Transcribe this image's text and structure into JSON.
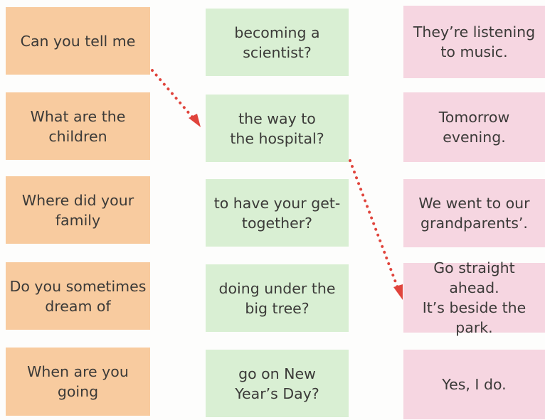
{
  "colors": {
    "column_a": "#f8cb9f",
    "column_b": "#d9efd3",
    "column_c": "#f6d6e1",
    "arrow": "#e0443c"
  },
  "column_a": [
    "Can you tell me",
    "What are the\nchildren",
    "Where did your\nfamily",
    "Do you sometimes\ndream of",
    "When are you\ngoing"
  ],
  "column_b": [
    "becoming a\nscientist?",
    "the way to\nthe hospital?",
    "to have your get-\ntogether?",
    "doing under the\nbig tree?",
    "go on New\nYear’s Day?"
  ],
  "column_c": [
    "They’re listening\nto music.",
    "Tomorrow\nevening.",
    "We went to our\ngrandparents’.",
    "Go straight ahead.\nIt’s beside the\npark.",
    "Yes, I do."
  ],
  "example_links": [
    {
      "from": "Can you tell me",
      "to": "the way to\nthe hospital?"
    },
    {
      "from": "the way to\nthe hospital?",
      "to": "Go straight ahead.\nIt’s beside the\npark."
    }
  ]
}
